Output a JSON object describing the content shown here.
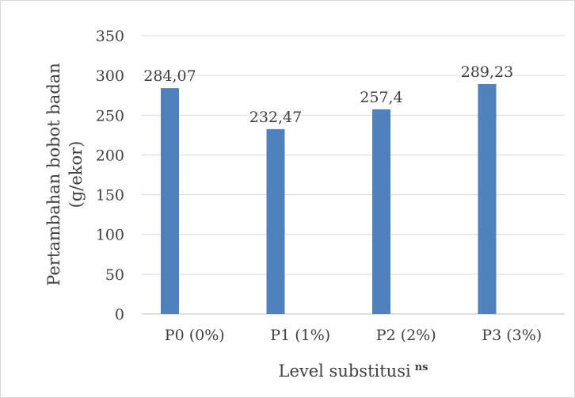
{
  "chart_data": {
    "type": "bar",
    "categories": [
      "P0 (0%)",
      "P1 (1%)",
      "P2 (2%)",
      "P3 (3%)"
    ],
    "values": [
      284.07,
      232.47,
      257.4,
      289.23
    ],
    "data_labels": [
      "284,07",
      "232,47",
      "257,4",
      "289,23"
    ],
    "xlabel": "Level substitusi",
    "xlabel_superscript": "ns",
    "ylabel_line1": "Pertambahan bobot badan",
    "ylabel_line2": "(g/ekor)",
    "ylim": [
      0,
      350
    ],
    "yticks": [
      0,
      50,
      100,
      150,
      200,
      250,
      300,
      350
    ],
    "grid": true,
    "legend": "none",
    "bar_color": "#4f81bd",
    "grid_color": "#d9d9d9"
  }
}
